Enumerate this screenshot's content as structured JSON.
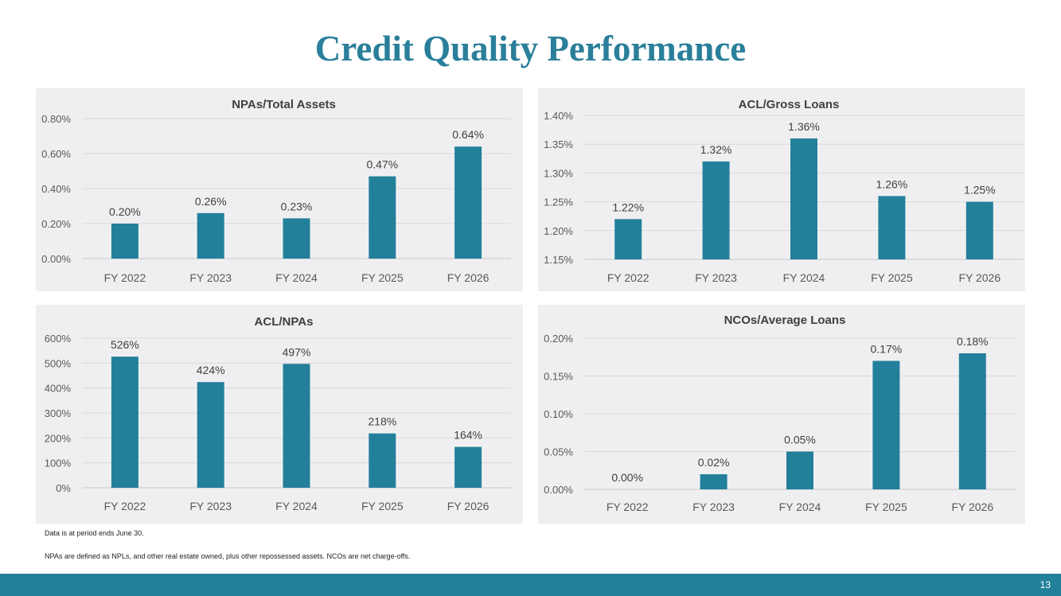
{
  "page": {
    "title": "Credit Quality Performance",
    "notes": [
      "Data is at period ends June 30.",
      "NPAs are defined as NPLs, and other real estate owned, plus other repossessed assets. NCOs are net charge-offs."
    ],
    "page_number": "13",
    "colors": {
      "title": "#2a7f9a",
      "bar": "#23809b",
      "footer": "#23809b",
      "panel_bg": "#efeff2"
    }
  },
  "chart_data": [
    {
      "type": "bar",
      "title": "NPAs/Total Assets",
      "categories": [
        "FY 2022",
        "FY 2023",
        "FY 2024",
        "FY 2025",
        "FY 2026"
      ],
      "values": [
        0.2,
        0.26,
        0.23,
        0.47,
        0.64
      ],
      "data_labels": [
        "0.20%",
        "0.26%",
        "0.23%",
        "0.47%",
        "0.64%"
      ],
      "ylim": [
        0,
        0.8
      ],
      "yticks": [
        0,
        0.2,
        0.4,
        0.6,
        0.8
      ],
      "ytick_labels": [
        "0.00%",
        "0.20%",
        "0.40%",
        "0.60%",
        "0.80%"
      ],
      "grid": true,
      "xlabel": "",
      "ylabel": ""
    },
    {
      "type": "bar",
      "title": "ACL/Gross Loans",
      "categories": [
        "FY 2022",
        "FY 2023",
        "FY 2024",
        "FY 2025",
        "FY 2026"
      ],
      "values": [
        1.22,
        1.32,
        1.36,
        1.26,
        1.25
      ],
      "data_labels": [
        "1.22%",
        "1.32%",
        "1.36%",
        "1.26%",
        "1.25%"
      ],
      "ylim": [
        1.15,
        1.4
      ],
      "yticks": [
        1.15,
        1.2,
        1.25,
        1.3,
        1.35,
        1.4
      ],
      "ytick_labels": [
        "1.15%",
        "1.20%",
        "1.25%",
        "1.30%",
        "1.35%",
        "1.40%"
      ],
      "grid": true,
      "xlabel": "",
      "ylabel": ""
    },
    {
      "type": "bar",
      "title": "ACL/NPAs",
      "categories": [
        "FY 2022",
        "FY 2023",
        "FY 2024",
        "FY 2025",
        "FY 2026"
      ],
      "values": [
        526,
        424,
        497,
        218,
        164
      ],
      "data_labels": [
        "526%",
        "424%",
        "497%",
        "218%",
        "164%"
      ],
      "ylim": [
        0,
        600
      ],
      "yticks": [
        0,
        100,
        200,
        300,
        400,
        500,
        600
      ],
      "ytick_labels": [
        "0%",
        "100%",
        "200%",
        "300%",
        "400%",
        "500%",
        "600%"
      ],
      "grid": true,
      "xlabel": "",
      "ylabel": ""
    },
    {
      "type": "bar",
      "title": "NCOs/Average Loans",
      "categories": [
        "FY 2022",
        "FY 2023",
        "FY 2024",
        "FY 2025",
        "FY 2026"
      ],
      "values": [
        0.0,
        0.02,
        0.05,
        0.17,
        0.18
      ],
      "data_labels": [
        "0.00%",
        "0.02%",
        "0.05%",
        "0.17%",
        "0.18%"
      ],
      "ylim": [
        0,
        0.2
      ],
      "yticks": [
        0,
        0.05,
        0.1,
        0.15,
        0.2
      ],
      "ytick_labels": [
        "0.00%",
        "0.05%",
        "0.10%",
        "0.15%",
        "0.20%"
      ],
      "grid": true,
      "xlabel": "",
      "ylabel": ""
    }
  ]
}
